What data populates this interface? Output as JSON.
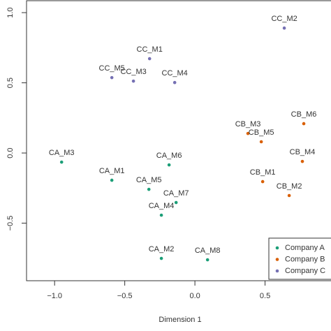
{
  "chart_data": {
    "type": "scatter",
    "xlabel": "Dimension 1",
    "xlim": [
      -1.2,
      0.97
    ],
    "ylim": [
      -0.91,
      1.09
    ],
    "xticks": [
      {
        "value": -1.0,
        "label": "−1.0"
      },
      {
        "value": -0.5,
        "label": "−0.5"
      },
      {
        "value": 0.0,
        "label": "0.0"
      },
      {
        "value": 0.5,
        "label": "0.5"
      }
    ],
    "yticks": [
      {
        "value": -0.5,
        "label": "−0.5"
      },
      {
        "value": 0.0,
        "label": "0.0"
      },
      {
        "value": 0.5,
        "label": "0.5"
      },
      {
        "value": 1.0,
        "label": "1.0"
      }
    ],
    "legend": "bottom-right",
    "series": [
      {
        "name": "Company A",
        "color": "#1b9e77",
        "labels": [
          "CA_M3",
          "CA_M1",
          "CA_M6",
          "CA_M5",
          "CA_M7",
          "CA_M4",
          "CA_M2",
          "CA_M8"
        ],
        "x": [
          -0.95,
          -0.592,
          -0.184,
          -0.328,
          -0.134,
          -0.239,
          -0.239,
          0.09
        ],
        "values": [
          -0.065,
          -0.194,
          -0.085,
          -0.259,
          -0.353,
          -0.443,
          -0.751,
          -0.761
        ]
      },
      {
        "name": "Company B",
        "color": "#d95f02",
        "labels": [
          "CB_M6",
          "CB_M3",
          "CB_M5",
          "CB_M4",
          "CB_M1",
          "CB_M2"
        ],
        "x": [
          0.776,
          0.378,
          0.473,
          0.766,
          0.483,
          0.672
        ],
        "values": [
          0.209,
          0.139,
          0.08,
          -0.06,
          -0.204,
          -0.303
        ]
      },
      {
        "name": "Company C",
        "color": "#7570b3",
        "labels": [
          "CC_M2",
          "CC_M1",
          "CC_M5",
          "CC_M3",
          "CC_M4"
        ],
        "x": [
          0.637,
          -0.323,
          -0.592,
          -0.438,
          -0.144
        ],
        "values": [
          0.89,
          0.672,
          0.537,
          0.512,
          0.502
        ]
      }
    ]
  }
}
